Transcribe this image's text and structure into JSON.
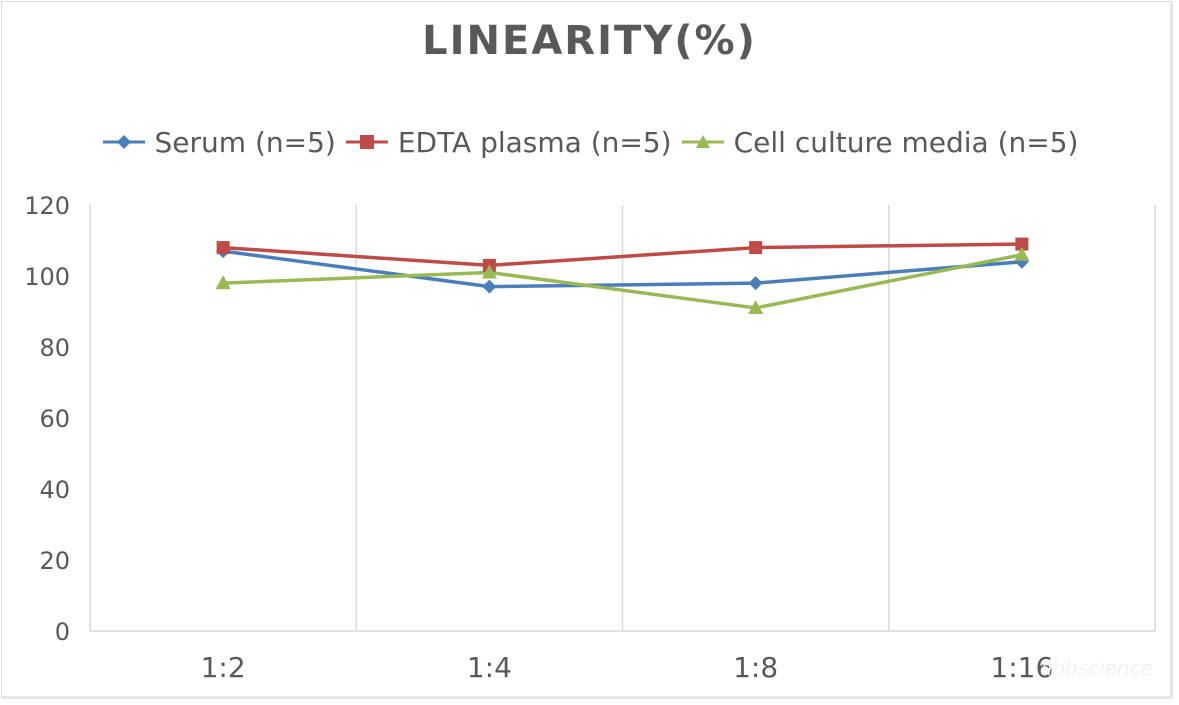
{
  "chart_data": {
    "type": "line",
    "title": "LINEARITY(%)",
    "xlabel": "",
    "ylabel": "",
    "categories": [
      "1:2",
      "1:4",
      "1:8",
      "1:16"
    ],
    "ylim": [
      0,
      120
    ],
    "yticks": [
      0,
      20,
      40,
      60,
      80,
      100,
      120
    ],
    "grid": "vertical category separators",
    "legend_position": "top",
    "series": [
      {
        "name": "Serum (n=5)",
        "values": [
          107,
          97,
          98,
          104
        ],
        "color": "#4a7ebb",
        "marker": "diamond"
      },
      {
        "name": "EDTA plasma (n=5)",
        "values": [
          108,
          103,
          108,
          109
        ],
        "color": "#be4b48",
        "marker": "square"
      },
      {
        "name": "Cell culture media (n=5)",
        "values": [
          98,
          101,
          91,
          106
        ],
        "color": "#98b954",
        "marker": "triangle"
      }
    ]
  },
  "watermark": "abbscience"
}
